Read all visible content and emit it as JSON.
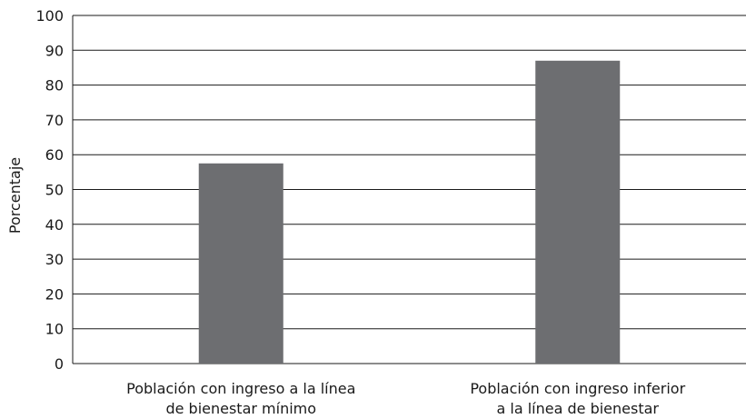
{
  "chart_data": {
    "type": "bar",
    "categories": [
      [
        "Población con ingreso a la línea",
        "de bienestar mínimo"
      ],
      [
        "Población con ingreso inferior",
        "a la línea de bienestar"
      ]
    ],
    "values": [
      57.5,
      87
    ],
    "ylabel": "Porcentaje",
    "xlabel": "",
    "ylim": [
      0,
      100
    ],
    "yticks": [
      0,
      10,
      20,
      30,
      40,
      50,
      60,
      70,
      80,
      90,
      100
    ],
    "grid": true,
    "colors": {
      "bar": "#6d6e71",
      "grid": "#1a1a1a",
      "text": "#1a1a1a"
    }
  }
}
